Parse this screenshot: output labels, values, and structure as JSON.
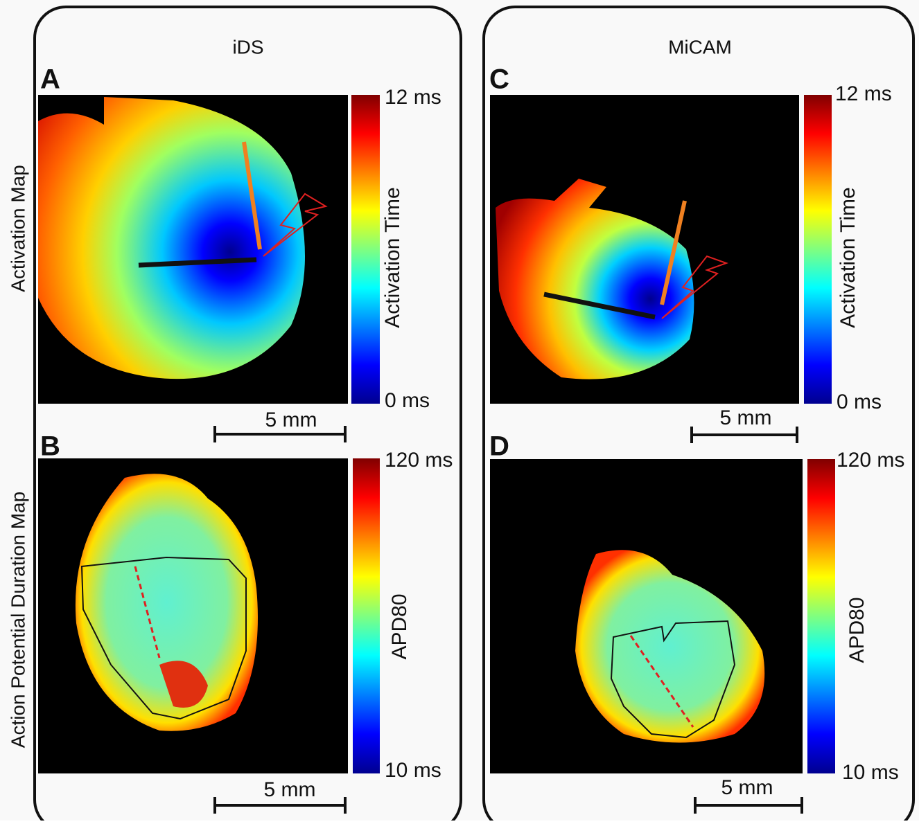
{
  "columns": [
    {
      "title": "iDS"
    },
    {
      "title": "MiCAM"
    }
  ],
  "row_labels": [
    "Activation Map",
    "Action Potential Duration Map"
  ],
  "panels": [
    {
      "letter": "A",
      "colorbar_label": "Activation Time",
      "colorbar_max": "12 ms",
      "colorbar_min": "0 ms",
      "scale_bar": "5 mm"
    },
    {
      "letter": "B",
      "colorbar_label": "APD80",
      "colorbar_max": "120 ms",
      "colorbar_min": "10 ms",
      "scale_bar": "5 mm"
    },
    {
      "letter": "C",
      "colorbar_label": "Activation Time",
      "colorbar_max": "12 ms",
      "colorbar_min": "0 ms",
      "scale_bar": "5 mm"
    },
    {
      "letter": "D",
      "colorbar_label": "APD80",
      "colorbar_max": "120 ms",
      "colorbar_min": "10 ms",
      "scale_bar": "5 mm"
    }
  ]
}
